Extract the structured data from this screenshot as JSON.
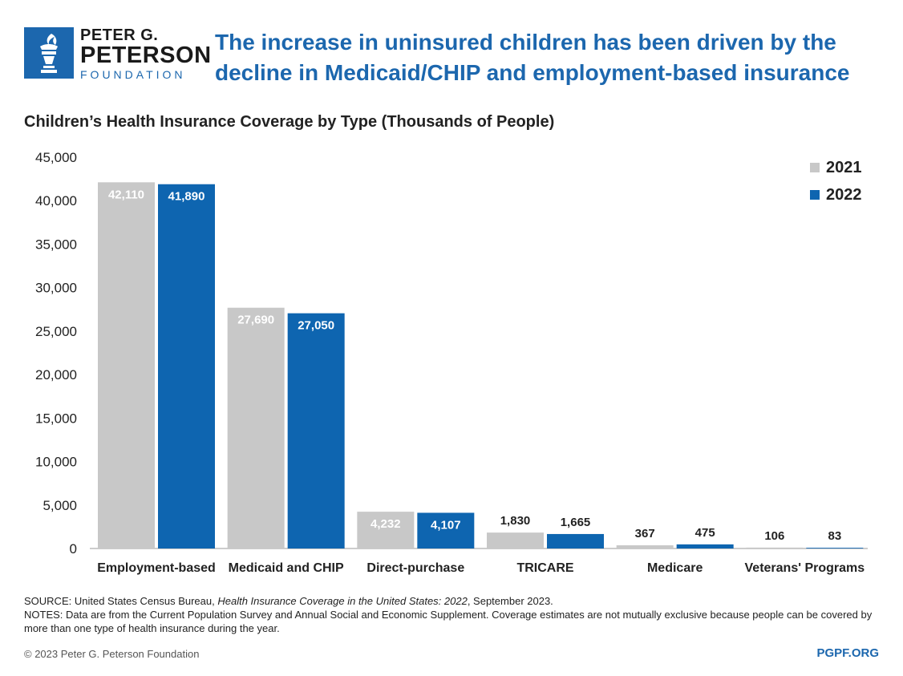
{
  "brand": {
    "line1": "PETER G.",
    "line2": "PETERSON",
    "line3": "FOUNDATION",
    "color": "#1c67ae",
    "icon": "torch-icon"
  },
  "headline": "The increase in uninsured children has been driven by the decline in Medicaid/CHIP and employment-based insurance",
  "chart_data": {
    "type": "bar",
    "title": "Children’s Health Insurance Coverage by Type (Thousands of People)",
    "categories": [
      "Employment-based",
      "Medicaid and CHIP",
      "Direct-purchase",
      "TRICARE",
      "Medicare",
      "Veterans' Programs"
    ],
    "series": [
      {
        "name": "2021",
        "color": "#c8c8c8",
        "values": [
          42110,
          27690,
          4232,
          1830,
          367,
          106
        ],
        "labels": [
          "42,110",
          "27,690",
          "4,232",
          "1,830",
          "367",
          "106"
        ]
      },
      {
        "name": "2022",
        "color": "#0e65b0",
        "values": [
          41890,
          27050,
          4107,
          1665,
          475,
          83
        ],
        "labels": [
          "41,890",
          "27,050",
          "4,107",
          "1,665",
          "475",
          "83"
        ]
      }
    ],
    "ylim": [
      0,
      45000
    ],
    "yticks": [
      0,
      5000,
      10000,
      15000,
      20000,
      25000,
      30000,
      35000,
      40000,
      45000
    ],
    "ytick_labels": [
      "0",
      "5,000",
      "10,000",
      "15,000",
      "20,000",
      "25,000",
      "30,000",
      "35,000",
      "40,000",
      "45,000"
    ],
    "legend_position": "top-right",
    "grid": false
  },
  "footer": {
    "source_prefix": "SOURCE: United States Census Bureau, ",
    "source_title": "Health Insurance Coverage in the United States: 2022",
    "source_suffix": ", September 2023.",
    "notes": "NOTES: Data are from the Current Population Survey and Annual Social and Economic Supplement. Coverage estimates are not mutually exclusive because people can be covered by more than one type of health insurance during the year.",
    "copyright": "© 2023 Peter G. Peterson Foundation",
    "site": "PGPF.ORG"
  }
}
